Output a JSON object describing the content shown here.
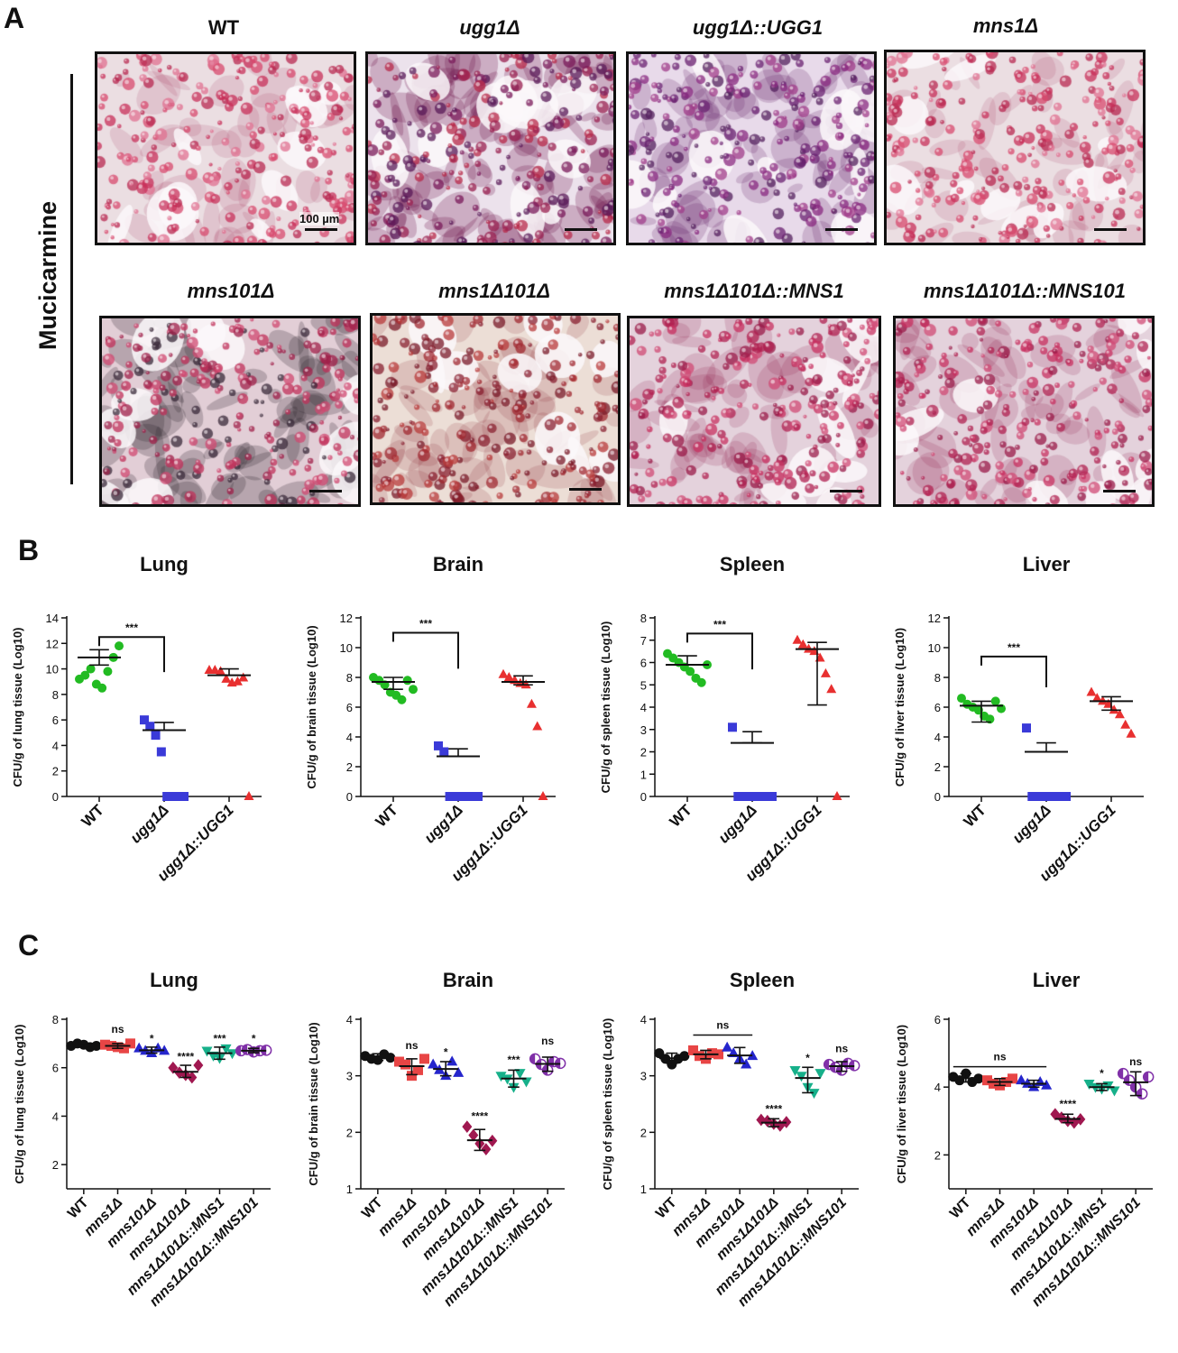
{
  "panel_labels": {
    "a": "A",
    "b": "B",
    "c": "C"
  },
  "panel_a": {
    "stain": "Mucicarmine",
    "scale_text": "100 µm",
    "images": [
      {
        "title": "WT",
        "palette": "pink"
      },
      {
        "title": "ugg1Δ",
        "palette": "dark-purple"
      },
      {
        "title": "ugg1Δ::UGG1",
        "palette": "purple"
      },
      {
        "title": "mns1Δ",
        "palette": "pink"
      },
      {
        "title": "mns101Δ",
        "palette": "dark-pink"
      },
      {
        "title": "mns1Δ101Δ",
        "palette": "brown"
      },
      {
        "title": "mns1Δ101Δ::MNS1",
        "palette": "crimson"
      },
      {
        "title": "mns1Δ101Δ::MNS101",
        "palette": "crimson"
      }
    ]
  },
  "colors": {
    "WT_b": "#22bb22",
    "ugg1": "#3a3ad8",
    "UGG1": "#e83030",
    "WT_c": "#111111",
    "mns1": "#e84545",
    "mns101": "#2525cc",
    "mns1_101": "#a01850",
    "MNS1": "#17b08a",
    "MNS101": "#8030a8"
  },
  "chart_data": [
    {
      "type": "scatter",
      "title": "Lung",
      "ylabel": "CFU/g of lung tissue (Log10)",
      "ylim": [
        0,
        14
      ],
      "yticks": [
        0,
        2,
        4,
        6,
        8,
        10,
        12,
        14
      ],
      "categories": [
        "WT",
        "ugg1Δ",
        "ugg1Δ::UGG1"
      ],
      "series": [
        {
          "marker": "circle",
          "color": "#22bb22",
          "values": [
            9.2,
            9.5,
            10.0,
            8.8,
            8.5,
            9.8,
            10.9,
            11.8
          ],
          "mean": 10.9,
          "err": [
            10.3,
            11.5
          ]
        },
        {
          "marker": "square",
          "color": "#3a3ad8",
          "values": [
            6.0,
            5.5,
            4.8,
            3.5,
            0,
            0,
            0,
            0
          ],
          "mean": 5.2,
          "err": [
            5.2,
            5.8
          ]
        },
        {
          "marker": "triangle",
          "color": "#e83030",
          "values": [
            9.9,
            9.9,
            9.8,
            9.2,
            8.9,
            9.0,
            9.3,
            0
          ],
          "mean": 9.5,
          "err": [
            9.5,
            10.0
          ]
        }
      ],
      "annotations": [
        {
          "text": "***",
          "type": "bracket",
          "from": 0,
          "to": 1,
          "y": 12.5
        }
      ]
    },
    {
      "type": "scatter",
      "title": "Brain",
      "ylabel": "CFU/g of brain tissue (Log10)",
      "ylim": [
        0,
        12
      ],
      "yticks": [
        0,
        2,
        4,
        6,
        8,
        10,
        12
      ],
      "categories": [
        "WT",
        "ugg1Δ",
        "ugg1Δ::UGG1"
      ],
      "series": [
        {
          "marker": "circle",
          "color": "#22bb22",
          "values": [
            8.0,
            7.8,
            7.5,
            7.0,
            6.8,
            6.5,
            7.8,
            7.2
          ],
          "mean": 7.7,
          "err": [
            7.2,
            8.0
          ]
        },
        {
          "marker": "square",
          "color": "#3a3ad8",
          "values": [
            3.4,
            3.0,
            0,
            0,
            0,
            0,
            0,
            0
          ],
          "mean": 2.7,
          "err": [
            2.7,
            3.2
          ]
        },
        {
          "marker": "triangle",
          "color": "#e83030",
          "values": [
            8.2,
            8.0,
            7.8,
            7.6,
            7.5,
            6.2,
            4.7,
            0
          ],
          "mean": 7.7,
          "err": [
            7.5,
            8.1
          ]
        }
      ],
      "annotations": [
        {
          "text": "***",
          "type": "bracket",
          "from": 0,
          "to": 1,
          "y": 11.0
        }
      ]
    },
    {
      "type": "scatter",
      "title": "Spleen",
      "ylabel": "CFU/g of spleen tissue (Log10)",
      "ylim": [
        0,
        8
      ],
      "yticks": [
        0,
        1,
        2,
        3,
        4,
        5,
        6,
        7,
        8
      ],
      "categories": [
        "WT",
        "ugg1Δ",
        "ugg1Δ::UGG1"
      ],
      "series": [
        {
          "marker": "circle",
          "color": "#22bb22",
          "values": [
            6.4,
            6.2,
            6.0,
            5.8,
            5.6,
            5.3,
            5.1,
            5.9
          ],
          "mean": 5.9,
          "err": [
            5.9,
            6.3
          ]
        },
        {
          "marker": "square",
          "color": "#3a3ad8",
          "values": [
            3.1,
            0,
            0,
            0,
            0,
            0,
            0,
            0
          ],
          "mean": 2.4,
          "err": [
            2.4,
            2.9
          ]
        },
        {
          "marker": "triangle",
          "color": "#e83030",
          "values": [
            7.0,
            6.8,
            6.6,
            6.5,
            6.2,
            5.5,
            4.8,
            0
          ],
          "mean": 6.6,
          "err": [
            4.1,
            6.9
          ]
        }
      ],
      "annotations": [
        {
          "text": "***",
          "type": "bracket",
          "from": 0,
          "to": 1,
          "y": 7.3
        }
      ]
    },
    {
      "type": "scatter",
      "title": "Liver",
      "ylabel": "CFU/g of liver tissue (Log10)",
      "ylim": [
        0,
        12
      ],
      "yticks": [
        0,
        2,
        4,
        6,
        8,
        10,
        12
      ],
      "categories": [
        "WT",
        "ugg1Δ",
        "ugg1Δ::UGG1"
      ],
      "series": [
        {
          "marker": "circle",
          "color": "#22bb22",
          "values": [
            6.6,
            6.2,
            6.0,
            5.8,
            5.4,
            5.2,
            6.4,
            5.9
          ],
          "mean": 6.1,
          "err": [
            5.0,
            6.4
          ]
        },
        {
          "marker": "square",
          "color": "#3a3ad8",
          "values": [
            4.6,
            0,
            0,
            0,
            0,
            0,
            0,
            0
          ],
          "mean": 3.0,
          "err": [
            3.0,
            3.6
          ]
        },
        {
          "marker": "triangle",
          "color": "#e83030",
          "values": [
            7.0,
            6.6,
            6.4,
            6.2,
            5.8,
            5.5,
            4.8,
            4.2
          ],
          "mean": 6.4,
          "err": [
            5.8,
            6.7
          ]
        }
      ],
      "annotations": [
        {
          "text": "***",
          "type": "bracket",
          "from": 0,
          "to": 1,
          "y": 9.4
        }
      ]
    },
    {
      "type": "scatter",
      "title": "Lung",
      "ylabel": "CFU/g of lung tissue (Log10)",
      "ylim": [
        1,
        8
      ],
      "yticks": [
        2,
        4,
        6,
        8
      ],
      "categories": [
        "WT",
        "mns1Δ",
        "mns101Δ",
        "mns1Δ101Δ",
        "mns1Δ101Δ::MNS1",
        "mns1Δ101Δ::MNS101"
      ],
      "series": [
        {
          "marker": "circle",
          "color": "#111111",
          "values": [
            6.9,
            7.0,
            6.95,
            6.85,
            6.9
          ],
          "mean": 6.92,
          "err": [
            6.85,
            7.0
          ]
        },
        {
          "marker": "square",
          "color": "#e84545",
          "values": [
            6.95,
            6.9,
            6.85,
            6.8,
            7.0
          ],
          "mean": 6.9,
          "err": [
            6.8,
            7.0
          ]
        },
        {
          "marker": "triangle",
          "color": "#2525cc",
          "values": [
            6.8,
            6.7,
            6.6,
            6.8,
            6.7
          ],
          "mean": 6.72,
          "err": [
            6.6,
            6.85
          ]
        },
        {
          "marker": "diamond",
          "color": "#a01850",
          "values": [
            6.0,
            5.8,
            5.7,
            5.6,
            6.1
          ],
          "mean": 5.83,
          "err": [
            5.6,
            6.1
          ]
        },
        {
          "marker": "triangle-down",
          "color": "#17b08a",
          "values": [
            6.7,
            6.5,
            6.4,
            6.8,
            6.6
          ],
          "mean": 6.6,
          "err": [
            6.35,
            6.85
          ]
        },
        {
          "marker": "circle-half",
          "color": "#8030a8",
          "values": [
            6.7,
            6.75,
            6.65,
            6.7,
            6.72
          ],
          "mean": 6.7,
          "err": [
            6.62,
            6.8
          ]
        }
      ],
      "annotations": [
        {
          "text": "ns",
          "group": 1,
          "y": 7.45
        },
        {
          "text": "*",
          "group": 2,
          "y": 7.05
        },
        {
          "text": "****",
          "group": 3,
          "y": 6.3
        },
        {
          "text": "***",
          "group": 4,
          "y": 7.05
        },
        {
          "text": "*",
          "group": 5,
          "y": 7.05
        }
      ]
    },
    {
      "type": "scatter",
      "title": "Brain",
      "ylabel": "CFU/g of brain tissue (Log10)",
      "ylim": [
        1,
        4
      ],
      "yticks": [
        1,
        2,
        3,
        4
      ],
      "categories": [
        "WT",
        "mns1Δ",
        "mns101Δ",
        "mns1Δ101Δ",
        "mns1Δ101Δ::MNS1",
        "mns1Δ101Δ::MNS101"
      ],
      "series": [
        {
          "marker": "circle",
          "color": "#111111",
          "values": [
            3.35,
            3.3,
            3.28,
            3.38,
            3.32
          ],
          "mean": 3.33,
          "err": [
            3.27,
            3.39
          ]
        },
        {
          "marker": "square",
          "color": "#e84545",
          "values": [
            3.25,
            3.2,
            3.0,
            3.1,
            3.3
          ],
          "mean": 3.17,
          "err": [
            3.02,
            3.3
          ]
        },
        {
          "marker": "triangle",
          "color": "#2525cc",
          "values": [
            3.2,
            3.1,
            3.0,
            3.25,
            3.05
          ],
          "mean": 3.12,
          "err": [
            3.0,
            3.25
          ]
        },
        {
          "marker": "diamond",
          "color": "#a01850",
          "values": [
            2.1,
            1.95,
            1.8,
            1.7,
            1.85
          ],
          "mean": 1.86,
          "err": [
            1.68,
            2.05
          ]
        },
        {
          "marker": "triangle-down",
          "color": "#17b08a",
          "values": [
            3.0,
            2.95,
            2.8,
            3.05,
            2.9
          ],
          "mean": 2.95,
          "err": [
            2.8,
            3.1
          ]
        },
        {
          "marker": "circle-half",
          "color": "#8030a8",
          "values": [
            3.3,
            3.2,
            3.1,
            3.25,
            3.22
          ],
          "mean": 3.21,
          "err": [
            3.08,
            3.33
          ]
        }
      ],
      "annotations": [
        {
          "text": "ns",
          "group": 1,
          "y": 3.47
        },
        {
          "text": "*",
          "group": 2,
          "y": 3.35
        },
        {
          "text": "****",
          "group": 3,
          "y": 2.22
        },
        {
          "text": "***",
          "group": 4,
          "y": 3.22
        },
        {
          "text": "ns",
          "group": 5,
          "y": 3.55
        }
      ]
    },
    {
      "type": "scatter",
      "title": "Spleen",
      "ylabel": "CFU/g of spleen tissue (Log10)",
      "ylim": [
        1,
        4
      ],
      "yticks": [
        1,
        2,
        3,
        4
      ],
      "categories": [
        "WT",
        "mns1Δ",
        "mns101Δ",
        "mns1Δ101Δ",
        "mns1Δ101Δ::MNS1",
        "mns1Δ101Δ::MNS101"
      ],
      "series": [
        {
          "marker": "circle",
          "color": "#111111",
          "values": [
            3.4,
            3.3,
            3.2,
            3.3,
            3.35
          ],
          "mean": 3.31,
          "err": [
            3.22,
            3.4
          ]
        },
        {
          "marker": "square",
          "color": "#e84545",
          "values": [
            3.45,
            3.35,
            3.3,
            3.4,
            3.38
          ],
          "mean": 3.38,
          "err": [
            3.3,
            3.45
          ]
        },
        {
          "marker": "triangle",
          "color": "#2525cc",
          "values": [
            3.5,
            3.4,
            3.3,
            3.2,
            3.35
          ],
          "mean": 3.36,
          "err": [
            3.22,
            3.5
          ]
        },
        {
          "marker": "diamond",
          "color": "#a01850",
          "values": [
            2.22,
            2.2,
            2.15,
            2.12,
            2.18
          ],
          "mean": 2.17,
          "err": [
            2.1,
            2.24
          ]
        },
        {
          "marker": "triangle-down",
          "color": "#17b08a",
          "values": [
            3.1,
            3.0,
            2.8,
            2.7,
            3.05
          ],
          "mean": 2.96,
          "err": [
            2.7,
            3.15
          ]
        },
        {
          "marker": "circle-half",
          "color": "#8030a8",
          "values": [
            3.2,
            3.15,
            3.1,
            3.22,
            3.18
          ],
          "mean": 3.17,
          "err": [
            3.08,
            3.25
          ]
        }
      ],
      "annotations": [
        {
          "text": "ns",
          "type": "bar",
          "from": 1,
          "to": 2,
          "y": 3.72
        },
        {
          "text": "****",
          "group": 3,
          "y": 2.35
        },
        {
          "text": "*",
          "group": 4,
          "y": 3.25
        },
        {
          "text": "ns",
          "group": 5,
          "y": 3.42
        }
      ]
    },
    {
      "type": "scatter",
      "title": "Liver",
      "ylabel": "CFU/g of liver tissue (Log10)",
      "ylim": [
        1,
        6
      ],
      "yticks": [
        2,
        4,
        6
      ],
      "categories": [
        "WT",
        "mns1Δ",
        "mns101Δ",
        "mns1Δ101Δ",
        "mns1Δ101Δ::MNS1",
        "mns1Δ101Δ::MNS101"
      ],
      "series": [
        {
          "marker": "circle",
          "color": "#111111",
          "values": [
            4.3,
            4.2,
            4.4,
            4.15,
            4.25
          ],
          "mean": 4.26,
          "err": [
            4.15,
            4.4
          ]
        },
        {
          "marker": "square",
          "color": "#e84545",
          "values": [
            4.2,
            4.1,
            4.05,
            4.15,
            4.25
          ],
          "mean": 4.15,
          "err": [
            4.05,
            4.25
          ]
        },
        {
          "marker": "triangle",
          "color": "#2525cc",
          "values": [
            4.2,
            4.1,
            4.0,
            4.15,
            4.05
          ],
          "mean": 4.1,
          "err": [
            4.0,
            4.2
          ]
        },
        {
          "marker": "diamond",
          "color": "#a01850",
          "values": [
            3.2,
            3.1,
            3.0,
            2.95,
            3.05
          ],
          "mean": 3.06,
          "err": [
            2.95,
            3.2
          ]
        },
        {
          "marker": "triangle-down",
          "color": "#17b08a",
          "values": [
            4.1,
            4.0,
            3.95,
            4.05,
            3.9
          ],
          "mean": 4.0,
          "err": [
            3.9,
            4.1
          ]
        },
        {
          "marker": "circle-half",
          "color": "#8030a8",
          "values": [
            4.4,
            4.2,
            4.0,
            3.8,
            4.3
          ],
          "mean": 4.14,
          "err": [
            3.75,
            4.45
          ]
        }
      ],
      "annotations": [
        {
          "text": "ns",
          "type": "bar",
          "from": 0,
          "to": 2,
          "y": 4.6
        },
        {
          "text": "****",
          "group": 3,
          "y": 3.4
        },
        {
          "text": "*",
          "group": 4,
          "y": 4.3
        },
        {
          "text": "ns",
          "group": 5,
          "y": 4.65
        }
      ]
    }
  ]
}
